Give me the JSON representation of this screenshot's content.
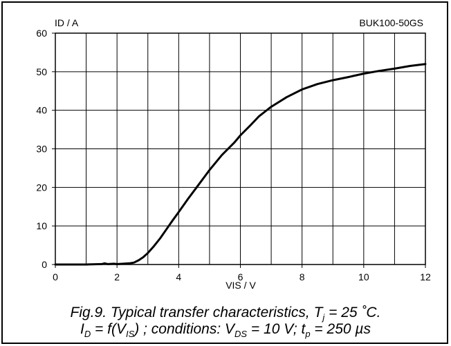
{
  "chart_data": {
    "type": "line",
    "ylabel": "ID / A",
    "xlabel": "VIS / V",
    "annotation": "BUK100-50GS",
    "xlim": [
      0,
      12
    ],
    "ylim": [
      0,
      60
    ],
    "x_ticks": [
      0,
      2,
      4,
      6,
      8,
      10,
      12
    ],
    "y_ticks": [
      0,
      10,
      20,
      30,
      40,
      50,
      60
    ],
    "x_grid_step": 1,
    "grid": true,
    "series": [
      {
        "x": [
          0,
          1.0,
          1.5,
          1.6,
          1.7,
          1.9,
          2.0,
          2.2,
          2.4,
          2.55,
          2.7,
          2.85,
          3.0,
          3.2,
          3.4,
          3.6,
          3.8,
          4.0,
          4.3,
          4.6,
          5.0,
          5.4,
          5.8,
          6.0,
          6.3,
          6.6,
          7.0,
          7.5,
          8.0,
          8.5,
          9.0,
          9.5,
          10.0,
          10.5,
          11.0,
          11.5,
          12.0
        ],
        "y": [
          0,
          0,
          0.1,
          0.3,
          0.1,
          0.2,
          0.1,
          0.2,
          0.3,
          0.5,
          1.1,
          1.9,
          3.0,
          4.8,
          6.8,
          9.1,
          11.4,
          13.6,
          17.0,
          20.2,
          24.5,
          28.4,
          31.6,
          33.5,
          35.9,
          38.4,
          40.9,
          43.4,
          45.4,
          46.8,
          47.8,
          48.6,
          49.5,
          50.2,
          50.8,
          51.5,
          52.0
        ]
      }
    ]
  },
  "caption": {
    "line1_prefix": "Fig.9.   Typical transfer characteristics, T",
    "line1_sub": "j",
    "line1_suffix": " = 25 ˚C.",
    "line2_a": "I",
    "line2_a_sub": "D",
    "line2_b": " = f(V",
    "line2_b_sub": "IS",
    "line2_c": ") ; conditions: V",
    "line2_c_sub": "DS",
    "line2_d": " = 10 V; t",
    "line2_d_sub": "p",
    "line2_e": " = 250 µs"
  }
}
